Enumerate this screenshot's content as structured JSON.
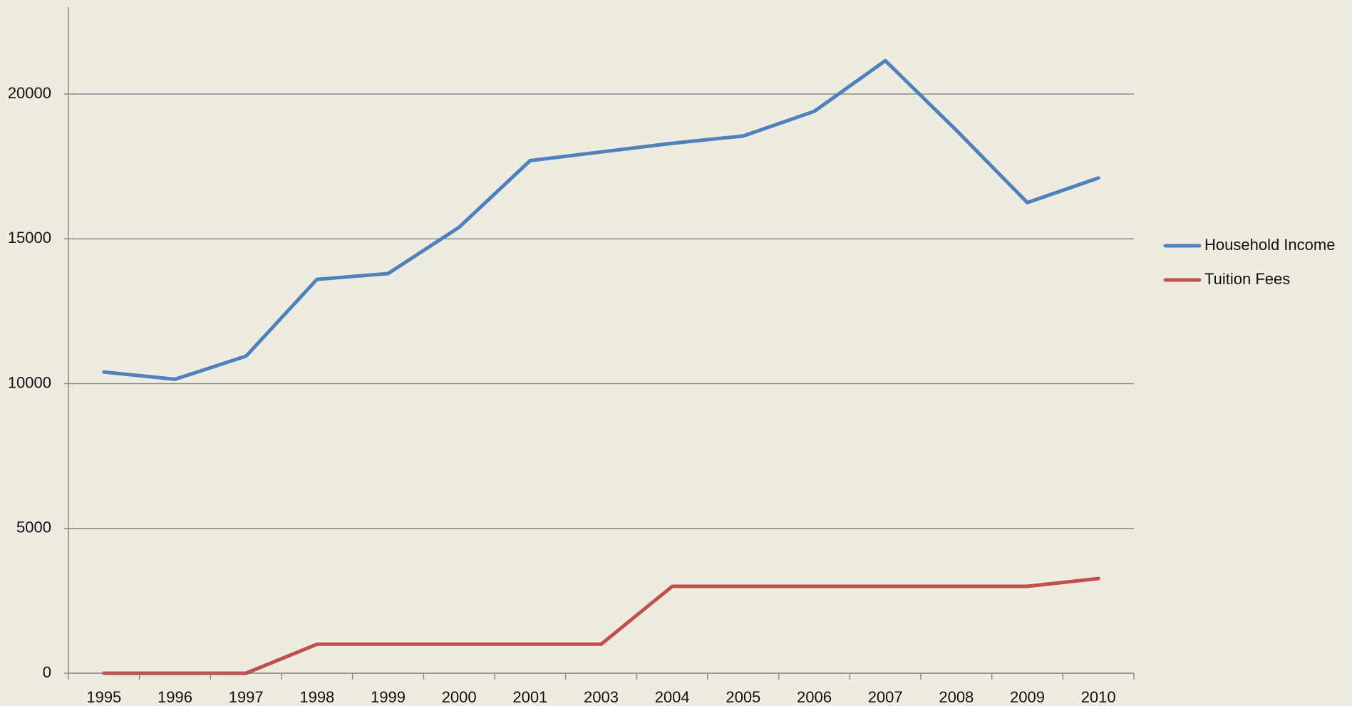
{
  "chart_data": {
    "type": "line",
    "categories": [
      "1995",
      "1996",
      "1997",
      "1998",
      "1999",
      "2000",
      "2001",
      "2003",
      "2004",
      "2005",
      "2006",
      "2007",
      "2008",
      "2009",
      "2010"
    ],
    "series": [
      {
        "name": "Household Income",
        "color": "#4f81bd",
        "values": [
          10400,
          10150,
          10950,
          13600,
          13800,
          15400,
          17700,
          18000,
          18300,
          18550,
          19400,
          21150,
          18750,
          16250,
          17100
        ]
      },
      {
        "name": "Tuition Fees",
        "color": "#c0504d",
        "values": [
          0,
          0,
          0,
          1000,
          1000,
          1000,
          1000,
          1000,
          3000,
          3000,
          3000,
          3000,
          3000,
          3000,
          3270
        ]
      }
    ],
    "ylim": [
      0,
      23000
    ],
    "yticks": [
      0,
      5000,
      10000,
      15000,
      20000
    ],
    "grid": true,
    "legend": "right"
  }
}
